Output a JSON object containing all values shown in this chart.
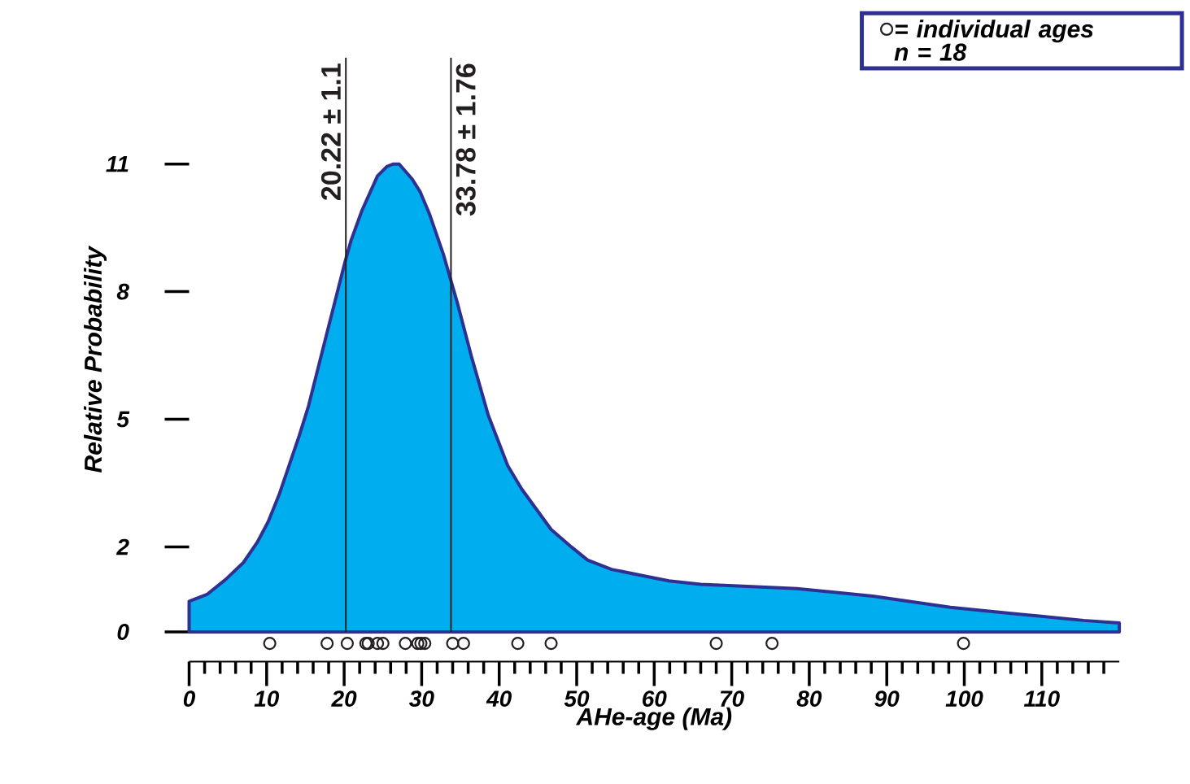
{
  "chart_data": {
    "type": "area",
    "xlabel": "AHe-age (Ma)",
    "ylabel": "Relative Probability",
    "xlim": [
      0,
      120
    ],
    "ylim": [
      -0.7,
      13.5
    ],
    "xticks": [
      0,
      {
        "value": 2,
        "label": null
      },
      {
        "value": 4,
        "label": null
      },
      {
        "value": 6,
        "label": null
      },
      {
        "value": 8,
        "label": null
      },
      10,
      {
        "value": 12,
        "label": null
      },
      {
        "value": 14,
        "label": null
      },
      {
        "value": 16,
        "label": null
      },
      {
        "value": 18,
        "label": null
      },
      20,
      {
        "value": 22,
        "label": null
      },
      {
        "value": 24,
        "label": null
      },
      {
        "value": 26,
        "label": null
      },
      {
        "value": 28,
        "label": null
      },
      30,
      {
        "value": 32,
        "label": null
      },
      {
        "value": 34,
        "label": null
      },
      {
        "value": 36,
        "label": null
      },
      {
        "value": 38,
        "label": null
      },
      40,
      {
        "value": 42,
        "label": null
      },
      {
        "value": 44,
        "label": null
      },
      {
        "value": 46,
        "label": null
      },
      {
        "value": 48,
        "label": null
      },
      50,
      {
        "value": 52,
        "label": null
      },
      {
        "value": 54,
        "label": null
      },
      {
        "value": 56,
        "label": null
      },
      {
        "value": 58,
        "label": null
      },
      60,
      {
        "value": 62,
        "label": null
      },
      {
        "value": 64,
        "label": null
      },
      {
        "value": 66,
        "label": null
      },
      {
        "value": 68,
        "label": null
      },
      70,
      {
        "value": 72,
        "label": null
      },
      {
        "value": 74,
        "label": null
      },
      {
        "value": 76,
        "label": null
      },
      {
        "value": 78,
        "label": null
      },
      80,
      {
        "value": 82,
        "label": null
      },
      {
        "value": 84,
        "label": null
      },
      {
        "value": 86,
        "label": null
      },
      {
        "value": 88,
        "label": null
      },
      90,
      {
        "value": 92,
        "label": null
      },
      {
        "value": 94,
        "label": null
      },
      {
        "value": 96,
        "label": null
      },
      {
        "value": 98,
        "label": null
      },
      100,
      {
        "value": 102,
        "label": null
      },
      {
        "value": 104,
        "label": null
      },
      {
        "value": 106,
        "label": null
      },
      {
        "value": 108,
        "label": null
      },
      110,
      {
        "value": 112,
        "label": null
      },
      {
        "value": 114,
        "label": null
      },
      {
        "value": 116,
        "label": null
      },
      {
        "value": 118,
        "label": null
      }
    ],
    "yticks": [
      0,
      2,
      5,
      8,
      11
    ],
    "series": [
      {
        "color": "#00aeef",
        "x": [
          0,
          2.3,
          4.7,
          7.0,
          8.8,
          10.2,
          11.6,
          14.2,
          15.4,
          17.7,
          20.1,
          20.9,
          22.3,
          24.3,
          25.5,
          26.3,
          27.1,
          28.8,
          29.8,
          31.0,
          32.8,
          34.6,
          36.4,
          38.6,
          41.1,
          42.9,
          46.7,
          49.3,
          51.4,
          54.5,
          58.6,
          61.9,
          66.0,
          72.0,
          78.4,
          88.2,
          98.2,
          106.3,
          115.4,
          120
        ],
        "values": [
          0.72,
          0.88,
          1.23,
          1.63,
          2.11,
          2.59,
          3.22,
          4.61,
          5.31,
          6.97,
          8.69,
          9.21,
          9.91,
          10.72,
          10.94,
          11.0,
          11.0,
          10.64,
          10.35,
          9.83,
          8.88,
          7.74,
          6.49,
          5.09,
          3.91,
          3.36,
          2.41,
          2.0,
          1.69,
          1.47,
          1.32,
          1.2,
          1.12,
          1.07,
          1.02,
          0.84,
          0.58,
          0.43,
          0.27,
          0.21
        ]
      },
      {
        "type": "scatter",
        "name": "= individual ages",
        "color": "#231f20",
        "marker": "circle",
        "x": [
          10.4,
          17.8,
          20.4,
          22.8,
          23.1,
          24.3,
          25.0,
          27.9,
          29.5,
          29.9,
          30.4,
          34.0,
          35.4,
          42.4,
          46.7,
          68.0,
          75.2,
          99.9
        ],
        "values": [
          -0.27,
          -0.27,
          -0.27,
          -0.27,
          -0.27,
          -0.27,
          -0.27,
          -0.27,
          -0.27,
          -0.27,
          -0.27,
          -0.27,
          -0.27,
          -0.27,
          -0.27,
          -0.27,
          -0.27,
          -0.27
        ]
      }
    ],
    "ref_lines": [
      {
        "axis": "x",
        "value": 20.22,
        "label": "20.22 ± 1.1",
        "color": "#231f20"
      },
      {
        "axis": "x",
        "value": 33.78,
        "label": "33.78 ± 1.76",
        "color": "#231f20"
      }
    ],
    "annotations": [
      "n = 18"
    ],
    "legend": "top right"
  }
}
